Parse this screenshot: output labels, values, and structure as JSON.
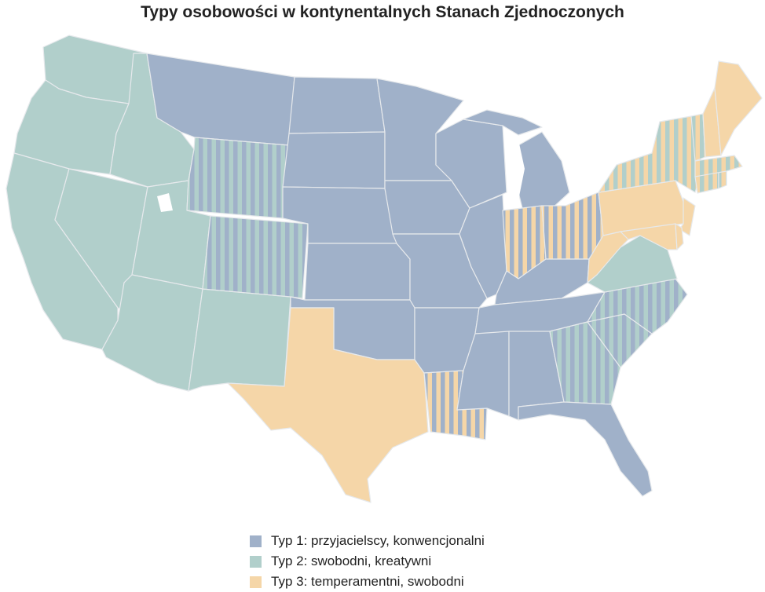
{
  "title": "Typy osobowości w kontynentalnych Stanach Zjednoczonych",
  "colors": {
    "type1": "#a0b1c9",
    "type2": "#b1cfcb",
    "type3": "#f5d6a8",
    "border": "#e6e9ec"
  },
  "legend": [
    {
      "label": "Typ 1: przyjacielscy, konwencjonalni",
      "color": "#a0b1c9"
    },
    {
      "label": "Typ 2: swobodni, kreatywni",
      "color": "#b1cfcb"
    },
    {
      "label": "Typ 3: temperamentni, swobodni",
      "color": "#f5d6a8"
    }
  ],
  "regions": [
    {
      "state": "Washington",
      "fill": "type2"
    },
    {
      "state": "Oregon",
      "fill": "type2"
    },
    {
      "state": "California",
      "fill": "type2"
    },
    {
      "state": "Nevada",
      "fill": "type2"
    },
    {
      "state": "Idaho",
      "fill": "type2"
    },
    {
      "state": "Utah",
      "fill": "type2"
    },
    {
      "state": "Arizona",
      "fill": "type2"
    },
    {
      "state": "New Mexico",
      "fill": "type2"
    },
    {
      "state": "Montana",
      "fill": "type1"
    },
    {
      "state": "Wyoming",
      "fill": "stripe12"
    },
    {
      "state": "Colorado",
      "fill": "stripe12"
    },
    {
      "state": "North Dakota",
      "fill": "type1"
    },
    {
      "state": "South Dakota",
      "fill": "type1"
    },
    {
      "state": "Nebraska",
      "fill": "type1"
    },
    {
      "state": "Kansas",
      "fill": "type1"
    },
    {
      "state": "Oklahoma",
      "fill": "type1"
    },
    {
      "state": "Texas",
      "fill": "type3"
    },
    {
      "state": "Minnesota",
      "fill": "type1"
    },
    {
      "state": "Iowa",
      "fill": "type1"
    },
    {
      "state": "Missouri",
      "fill": "type1"
    },
    {
      "state": "Arkansas",
      "fill": "type1"
    },
    {
      "state": "Louisiana",
      "fill": "stripe13"
    },
    {
      "state": "Wisconsin",
      "fill": "type1"
    },
    {
      "state": "Illinois",
      "fill": "type1"
    },
    {
      "state": "Michigan",
      "fill": "type1"
    },
    {
      "state": "Indiana",
      "fill": "stripe13"
    },
    {
      "state": "Ohio",
      "fill": "stripe13"
    },
    {
      "state": "Kentucky",
      "fill": "type1"
    },
    {
      "state": "Tennessee",
      "fill": "type1"
    },
    {
      "state": "Mississippi",
      "fill": "type1"
    },
    {
      "state": "Alabama",
      "fill": "type1"
    },
    {
      "state": "Georgia",
      "fill": "stripe12"
    },
    {
      "state": "Florida",
      "fill": "type1"
    },
    {
      "state": "South Carolina",
      "fill": "stripe12"
    },
    {
      "state": "North Carolina",
      "fill": "stripe12"
    },
    {
      "state": "Virginia",
      "fill": "type2"
    },
    {
      "state": "West Virginia",
      "fill": "type3"
    },
    {
      "state": "Pennsylvania",
      "fill": "type3"
    },
    {
      "state": "New York",
      "fill": "stripe23"
    },
    {
      "state": "New Jersey",
      "fill": "type3"
    },
    {
      "state": "Maryland",
      "fill": "type3"
    },
    {
      "state": "Delaware",
      "fill": "type3"
    },
    {
      "state": "Connecticut",
      "fill": "stripe23"
    },
    {
      "state": "Rhode Island",
      "fill": "stripe23"
    },
    {
      "state": "Massachusetts",
      "fill": "stripe23"
    },
    {
      "state": "Vermont",
      "fill": "stripe23"
    },
    {
      "state": "New Hampshire",
      "fill": "type3"
    },
    {
      "state": "Maine",
      "fill": "type3"
    }
  ]
}
